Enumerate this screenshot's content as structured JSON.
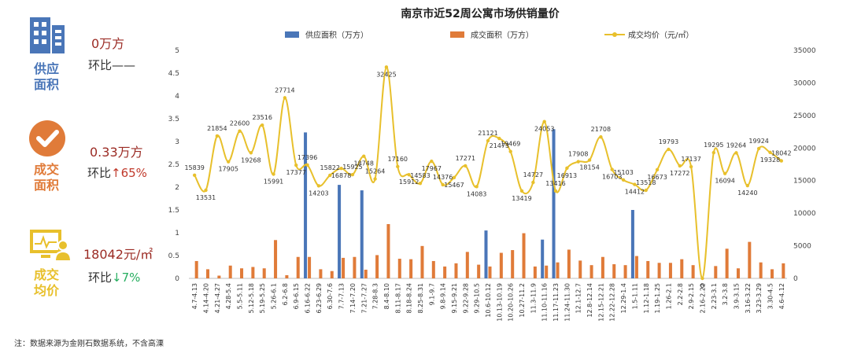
{
  "stats": {
    "supply": {
      "label_l1": "供应",
      "label_l2": "面积",
      "value": "0万方",
      "change": "环比——",
      "color": "#4a76b8"
    },
    "sales": {
      "label_l1": "成交",
      "label_l2": "面积",
      "value": "0.33万方",
      "change_prefix": "环比",
      "arrow": "↑",
      "change_value": "65%",
      "color": "#e07b39"
    },
    "price": {
      "label_l1": "成交",
      "label_l2": "均价",
      "value": "18042元/㎡",
      "change_prefix": "环比",
      "arrow": "↓",
      "change_value": "7%",
      "color": "#e8c02c"
    }
  },
  "note": "注：数据来源为金刚石数据系统，不含高溧",
  "chart_data": {
    "type": "bar",
    "title": "南京市近52周公寓市场供销量价",
    "legend": [
      "供应面积（万方）",
      "成交面积（万方）",
      "成交均价（元/㎡）"
    ],
    "legend_position": "top",
    "colors": {
      "supply": "#4a76b8",
      "sales": "#e07b39",
      "price": "#e8c02c"
    },
    "ylim_left": [
      0,
      5
    ],
    "ylim_right": [
      0,
      35000
    ],
    "left_ticks": [
      "0",
      "0.5",
      "1",
      "1.5",
      "2",
      "2.5",
      "3",
      "3.5",
      "4",
      "4.5",
      "5"
    ],
    "right_ticks": [
      "0",
      "5000",
      "10000",
      "15000",
      "20000",
      "25000",
      "30000",
      "35000"
    ],
    "categories": [
      "4.7-4.13",
      "4.14-4.20",
      "4.21-4.27",
      "4.28-5.4",
      "5.5-5.11",
      "5.12-5.18",
      "5.19-5.25",
      "5.26-6.1",
      "6.2-6.8",
      "6.9-6.15",
      "6.16-6.22",
      "6.23-6.29",
      "6.30-7.6",
      "7.7-7.13",
      "7.14-7.20",
      "7.21-7.27",
      "7.28-8.3",
      "8.4-8.10",
      "8.11-8.17",
      "8.18-8.24",
      "8.25-8.31",
      "9.1-9.7",
      "9.8-9.14",
      "9.15-9.21",
      "9.22-9.28",
      "9.29-10.5",
      "10.6-10.12",
      "10.13-10.19",
      "10.20-10.26",
      "10.27-11.2",
      "11.3-11.9",
      "11.10-11.16",
      "11.17-11.23",
      "11.24-11.30",
      "12.1-12.7",
      "12.8-12.14",
      "12.15-12.21",
      "12.22-12.28",
      "12.29-1.4",
      "1.5-1.11",
      "1.12-1.18",
      "1.19-1.25",
      "1.26-2.1",
      "2.2-2.8",
      "2.9-2.15",
      "2.16-2.22",
      "2.23-3.1",
      "3.2-3.8",
      "3.9-3.15",
      "3.16-3.22",
      "3.23-3.29",
      "3.30-4.5",
      "4.6-4.12"
    ],
    "series": [
      {
        "name": "供应面积（万方）",
        "type": "bar",
        "values": [
          0,
          0,
          0,
          0,
          0,
          0,
          0,
          0,
          0,
          0,
          3.2,
          0,
          0,
          2.05,
          0,
          1.93,
          0,
          0,
          0,
          0,
          0,
          0,
          0,
          0,
          0,
          0,
          1.05,
          0,
          0,
          0,
          0,
          0.85,
          3.27,
          0,
          0,
          0,
          0,
          0,
          0,
          1.5,
          0,
          0,
          0,
          0,
          0,
          0,
          0,
          0,
          0,
          0,
          0,
          0,
          0
        ]
      },
      {
        "name": "成交面积（万方）",
        "type": "bar",
        "values": [
          0.38,
          0.2,
          0.06,
          0.28,
          0.22,
          0.25,
          0.22,
          0.84,
          0.07,
          0.47,
          0.47,
          0.2,
          0.16,
          0.45,
          0.47,
          0.19,
          0.51,
          1.19,
          0.43,
          0.42,
          0.71,
          0.38,
          0.26,
          0.33,
          0.58,
          0.3,
          0.26,
          0.56,
          0.62,
          0.99,
          0.26,
          0.28,
          0.35,
          0.63,
          0.39,
          0.29,
          0.47,
          0.31,
          0.29,
          0.49,
          0.38,
          0.34,
          0.34,
          0.42,
          0.29,
          0,
          0.27,
          0.65,
          0.22,
          0.8,
          0.35,
          0.2,
          0.33
        ]
      },
      {
        "name": "成交均价（元/㎡）",
        "type": "line",
        "values": [
          15839,
          13531,
          21854,
          17905,
          22600,
          19268,
          23516,
          15991,
          27714,
          17377,
          17396,
          14203,
          15822,
          16878,
          15925,
          18748,
          15264,
          32425,
          17160,
          15912,
          14583,
          17967,
          14376,
          15467,
          17271,
          14083,
          21121,
          21473,
          19469,
          13419,
          14727,
          24053,
          13416,
          16913,
          17908,
          18154,
          21708,
          16703,
          15103,
          14412,
          13518,
          16673,
          19793,
          17272,
          17137,
          0,
          19295,
          16094,
          19264,
          14240,
          19924,
          19328,
          18042
        ]
      }
    ]
  }
}
